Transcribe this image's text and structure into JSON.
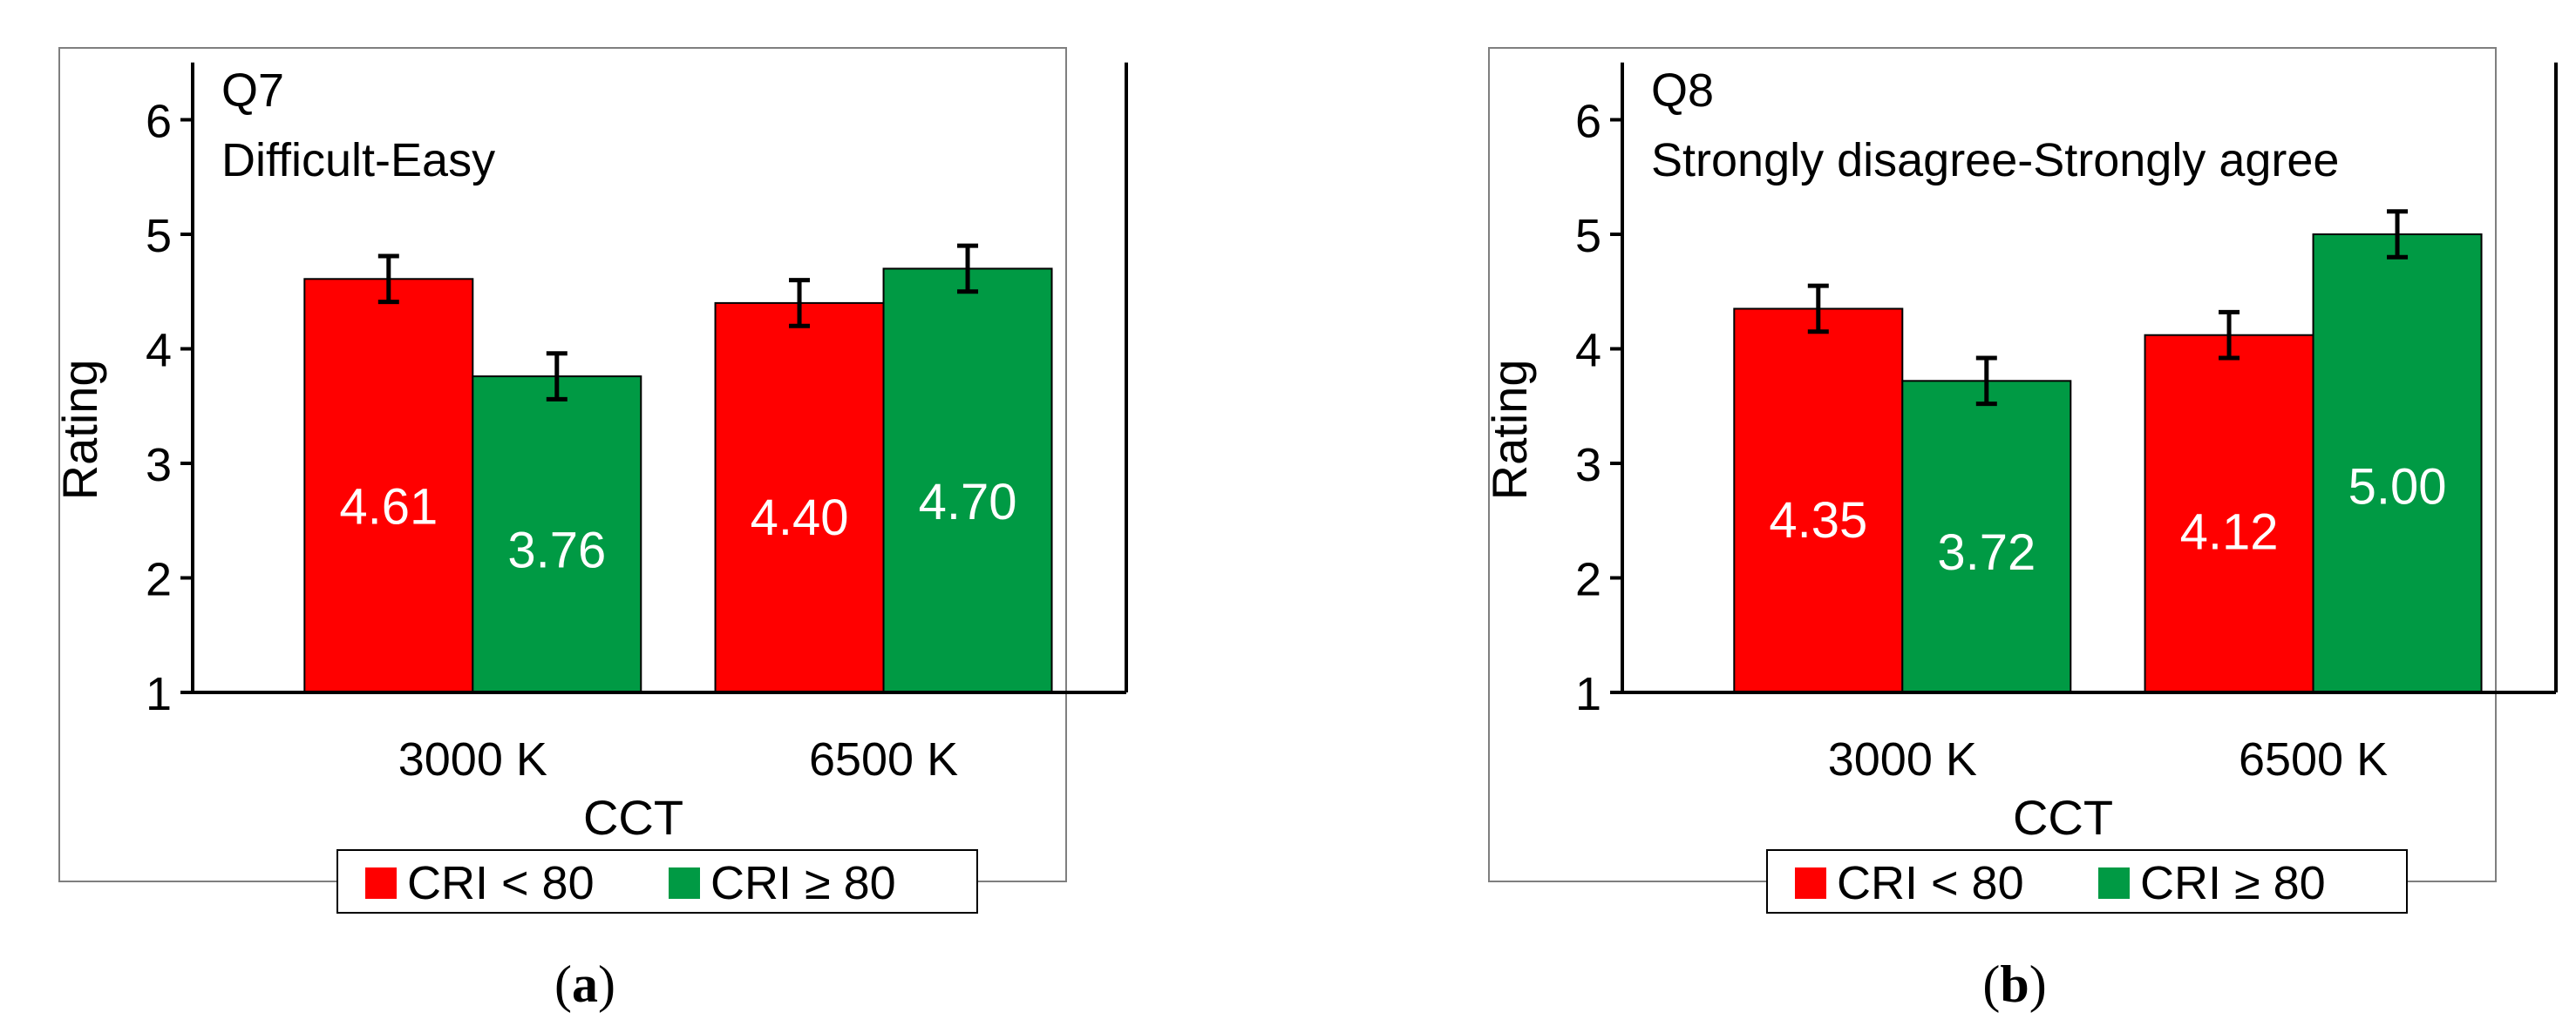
{
  "colors": {
    "red": "#ff0000",
    "green": "#009a44",
    "axis": "#000000",
    "frame": "#7f7f7f",
    "value_label": "#ffffff"
  },
  "chart_data": [
    {
      "type": "bar",
      "panel_label": "a",
      "title": "Q7",
      "subtitle": "Difficult-Easy",
      "xlabel": "CCT",
      "ylabel": "Rating",
      "ylim": [
        1,
        6.5
      ],
      "yticks": [
        1,
        2,
        3,
        4,
        5,
        6
      ],
      "categories": [
        "3000 K",
        "6500 K"
      ],
      "series": [
        {
          "name": "CRI < 80",
          "color": "#ff0000",
          "values": [
            4.61,
            4.4
          ],
          "labels": [
            "4.61",
            "4.40"
          ],
          "errors": [
            0.2,
            0.2
          ]
        },
        {
          "name": "CRI ≥ 80",
          "color": "#009a44",
          "values": [
            3.76,
            4.7
          ],
          "labels": [
            "3.76",
            "4.70"
          ],
          "errors": [
            0.2,
            0.2
          ]
        }
      ],
      "legend": "bottom"
    },
    {
      "type": "bar",
      "panel_label": "b",
      "title": "Q8",
      "subtitle": "Strongly disagree-Strongly agree",
      "xlabel": "CCT",
      "ylabel": "Rating",
      "ylim": [
        1,
        6.5
      ],
      "yticks": [
        1,
        2,
        3,
        4,
        5,
        6
      ],
      "categories": [
        "3000 K",
        "6500 K"
      ],
      "series": [
        {
          "name": "CRI < 80",
          "color": "#ff0000",
          "values": [
            4.35,
            4.12
          ],
          "labels": [
            "4.35",
            "4.12"
          ],
          "errors": [
            0.2,
            0.2
          ]
        },
        {
          "name": "CRI ≥ 80",
          "color": "#009a44",
          "values": [
            3.72,
            5.0
          ],
          "labels": [
            "3.72",
            "5.00"
          ],
          "errors": [
            0.2,
            0.2
          ]
        }
      ],
      "legend": "bottom"
    }
  ]
}
